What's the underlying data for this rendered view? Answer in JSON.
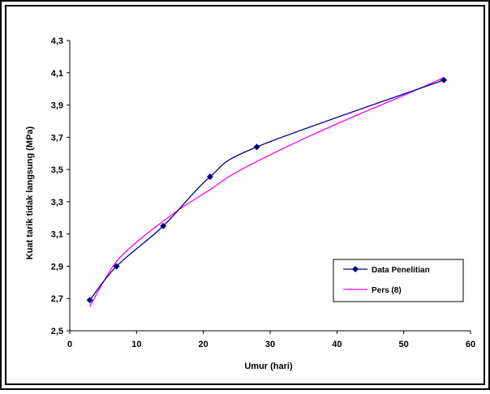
{
  "chart_data": {
    "type": "line",
    "title": "",
    "xlabel": "Umur (hari)",
    "ylabel": "Kuat tarik tidak langsung (MPa)",
    "xlim": [
      0,
      60
    ],
    "ylim": [
      2.5,
      4.3
    ],
    "x_ticks": [
      "0",
      "10",
      "20",
      "30",
      "40",
      "50",
      "60"
    ],
    "y_ticks": [
      "2,5",
      "2,7",
      "2,9",
      "3,1",
      "3,3",
      "3,5",
      "3,7",
      "3,9",
      "4,1",
      "4,3"
    ],
    "grid": false,
    "legend_position": "lower-right",
    "series": [
      {
        "name": "Data Penelitian",
        "color": "#000080",
        "marker": "diamond",
        "x": [
          3,
          7,
          14,
          21,
          28,
          56
        ],
        "y": [
          2.69,
          2.9,
          3.15,
          3.455,
          3.64,
          4.055
        ]
      },
      {
        "name": "Pers (8)",
        "color": "#ff00ff",
        "marker": "none",
        "x": [
          3,
          5,
          7,
          10,
          14,
          17,
          21,
          24,
          28,
          35,
          42,
          50,
          56
        ],
        "y": [
          2.65,
          2.8,
          2.93,
          3.05,
          3.18,
          3.27,
          3.375,
          3.46,
          3.55,
          3.69,
          3.82,
          3.96,
          4.07
        ]
      }
    ]
  }
}
